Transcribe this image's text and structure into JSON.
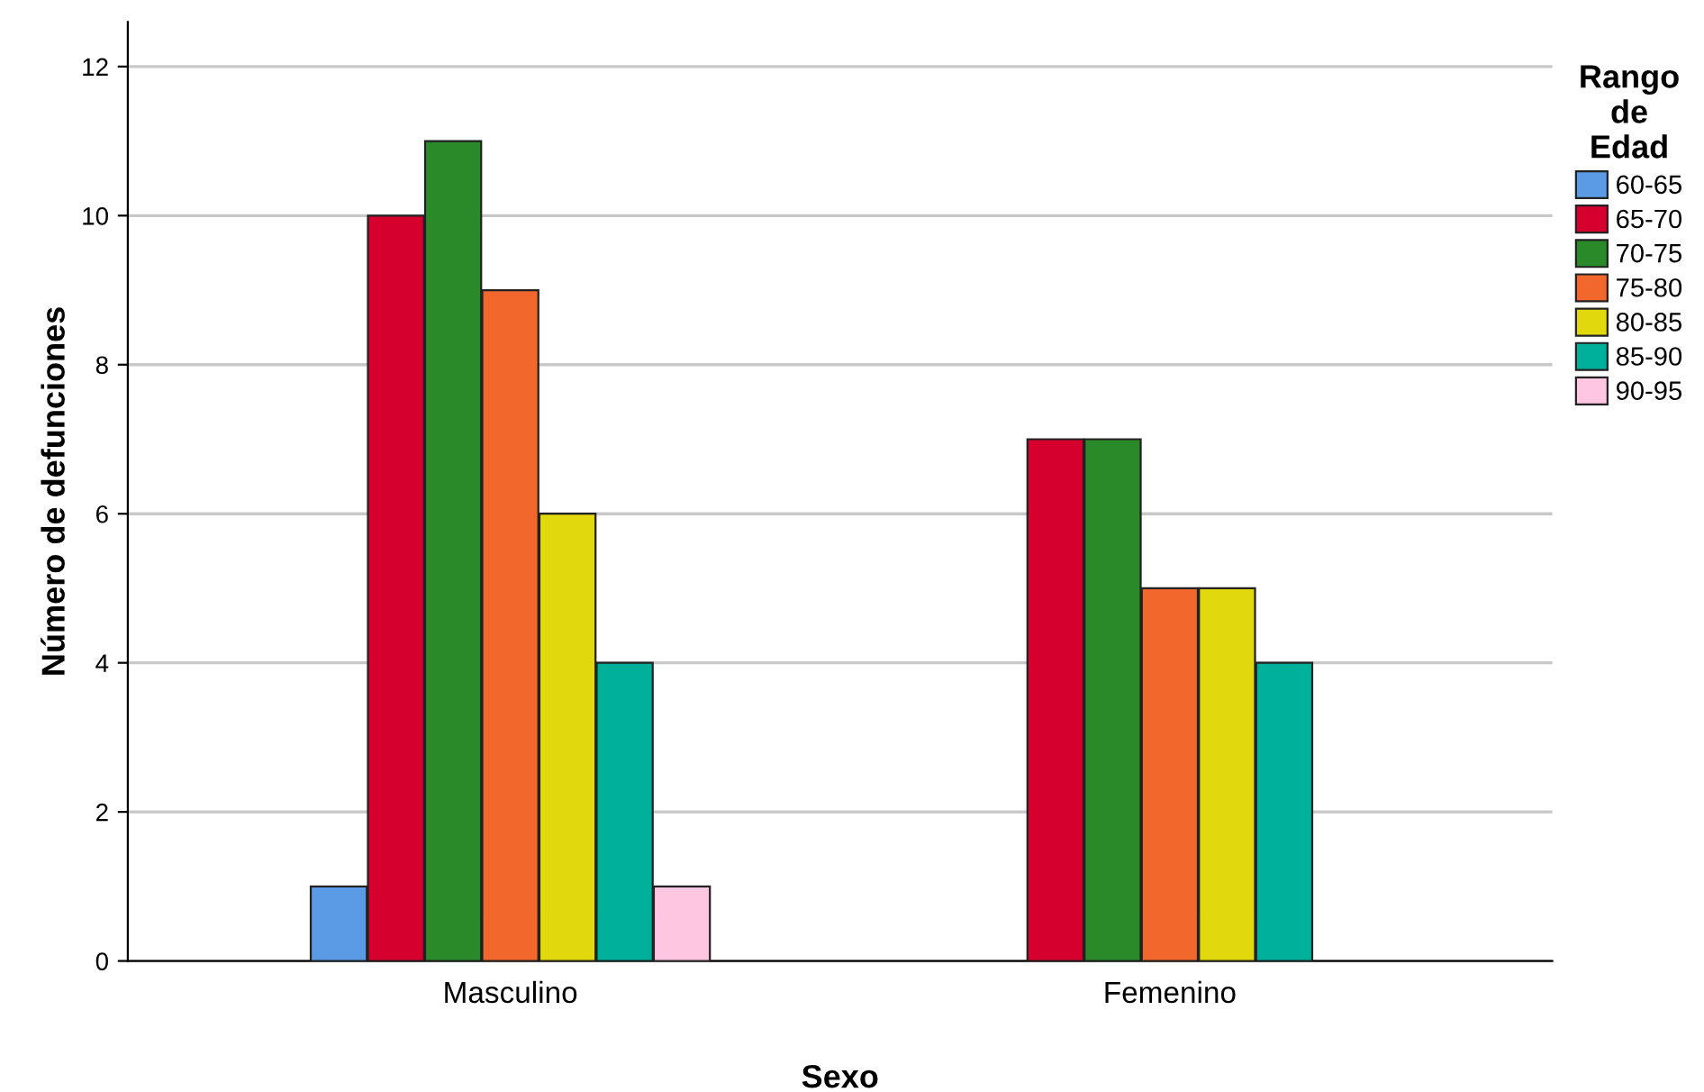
{
  "chart_data": {
    "type": "bar",
    "xlabel": "Sexo",
    "ylabel": "Número de defunciones",
    "legend_title": "Rango\nde\nEdad",
    "categories": [
      "Masculino",
      "Femenino"
    ],
    "series": [
      {
        "name": "60-65",
        "color": "#5b9be6",
        "values": [
          1,
          null
        ]
      },
      {
        "name": "65-70",
        "color": "#d6002f",
        "values": [
          10,
          7
        ]
      },
      {
        "name": "70-75",
        "color": "#2a8a2a",
        "values": [
          11,
          7
        ]
      },
      {
        "name": "75-80",
        "color": "#f2672c",
        "values": [
          9,
          5
        ]
      },
      {
        "name": "80-85",
        "color": "#e2d80e",
        "values": [
          6,
          5
        ]
      },
      {
        "name": "85-90",
        "color": "#00b09b",
        "values": [
          4,
          4
        ]
      },
      {
        "name": "90-95",
        "color": "#ffc6e2",
        "values": [
          1,
          null
        ]
      }
    ],
    "ylim": [
      0,
      12.6
    ],
    "yticks": [
      0,
      2,
      4,
      6,
      8,
      10,
      12
    ],
    "grid": "y",
    "legend": "right"
  }
}
